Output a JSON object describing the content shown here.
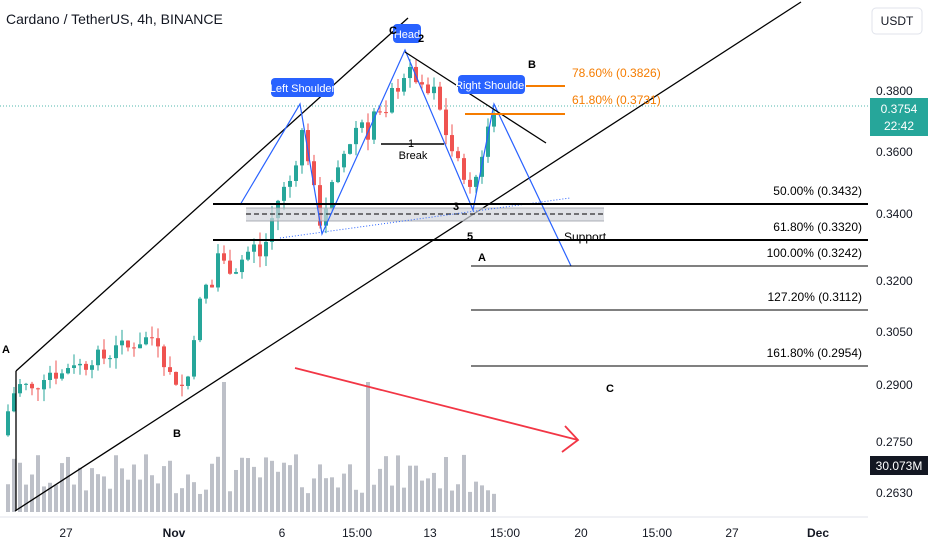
{
  "header": {
    "title": "Cardano / TetherUS, 4h, BINANCE"
  },
  "price_axis": {
    "currency_button": "USDT",
    "ticks": [
      "0.3800",
      "0.3600",
      "0.3400",
      "0.3200",
      "0.3050",
      "0.2900",
      "0.2750",
      "0.2630"
    ],
    "current_price": "0.3754",
    "countdown": "22:42",
    "volume_label": "30.073M"
  },
  "time_axis": {
    "ticks": [
      "27",
      "Nov",
      "6",
      "15:00",
      "13",
      "15:00",
      "20",
      "15:00",
      "27",
      "Dec"
    ]
  },
  "annotations": {
    "left_shoulder": "Left Shoulder",
    "head": "Head",
    "right_shoulder": "Right Shoulder",
    "break_num": "1",
    "break": "Break",
    "support": "Support",
    "wave_A_left": "A",
    "wave_B_low": "B",
    "wave_C_top": "C",
    "wave_2": "2",
    "wave_B_right": "B",
    "wave_3": "3",
    "wave_5": "5",
    "wave_A_right": "A",
    "wave_C_bottom": "C"
  },
  "fib_upper": [
    {
      "label": "78.60% (0.3826)",
      "price": 0.3826
    },
    {
      "label": "61.80% (0.3731)",
      "price": 0.3731
    }
  ],
  "fib_lower": [
    {
      "label": "50.00% (0.3432)",
      "price": 0.3432
    },
    {
      "label": "61.80% (0.3320)",
      "price": 0.332
    },
    {
      "label": "100.00% (0.3242)",
      "price": 0.3242
    },
    {
      "label": "127.20% (0.3112)",
      "price": 0.3112
    },
    {
      "label": "161.80% (0.2954)",
      "price": 0.2954
    }
  ],
  "colors": {
    "up": "#26a69a",
    "down": "#ef5350",
    "fib_upper": "#f57c00",
    "pattern_label_bg": "#2962ff",
    "projection": "#2962ff",
    "arrow": "#f23645",
    "price_badge": "#26a69a",
    "volume": "#b2b5be"
  },
  "chart_data": {
    "type": "candlestick",
    "symbol": "ADAUSDT",
    "timeframe": "4h",
    "exchange": "BINANCE",
    "ylim": [
      0.258,
      0.398
    ],
    "current_price": 0.3754,
    "path_points": [
      [
        0,
        0.269
      ],
      [
        10,
        0.282
      ],
      [
        20,
        0.286
      ],
      [
        32,
        0.283
      ],
      [
        45,
        0.29
      ],
      [
        58,
        0.288
      ],
      [
        70,
        0.293
      ],
      [
        82,
        0.291
      ],
      [
        95,
        0.295
      ],
      [
        106,
        0.2935
      ],
      [
        114,
        0.299
      ],
      [
        125,
        0.297
      ],
      [
        136,
        0.299
      ],
      [
        148,
        0.301
      ],
      [
        157,
        0.299
      ],
      [
        164,
        0.2905
      ],
      [
        170,
        0.288
      ],
      [
        176,
        0.286
      ],
      [
        181,
        0.2845
      ],
      [
        186,
        0.288
      ],
      [
        194,
        0.306
      ],
      [
        202,
        0.318
      ],
      [
        209,
        0.315
      ],
      [
        216,
        0.328
      ],
      [
        223,
        0.324
      ],
      [
        232,
        0.322
      ],
      [
        242,
        0.327
      ],
      [
        252,
        0.33
      ],
      [
        260,
        0.326
      ],
      [
        268,
        0.337
      ],
      [
        278,
        0.347
      ],
      [
        290,
        0.352
      ],
      [
        300,
        0.367
      ],
      [
        308,
        0.356
      ],
      [
        314,
        0.344
      ],
      [
        320,
        0.335
      ],
      [
        326,
        0.347
      ],
      [
        334,
        0.352
      ],
      [
        342,
        0.36
      ],
      [
        350,
        0.365
      ],
      [
        358,
        0.372
      ],
      [
        366,
        0.366
      ],
      [
        374,
        0.376
      ],
      [
        382,
        0.369
      ],
      [
        390,
        0.38
      ],
      [
        398,
        0.382
      ],
      [
        404,
        0.387
      ],
      [
        410,
        0.386
      ],
      [
        416,
        0.383
      ],
      [
        424,
        0.378
      ],
      [
        430,
        0.382
      ],
      [
        436,
        0.377
      ],
      [
        441,
        0.369
      ],
      [
        447,
        0.364
      ],
      [
        452,
        0.359
      ],
      [
        458,
        0.356
      ],
      [
        464,
        0.352
      ],
      [
        470,
        0.346
      ],
      [
        476,
        0.356
      ],
      [
        482,
        0.362
      ],
      [
        487,
        0.37
      ],
      [
        493,
        0.3754
      ]
    ],
    "volume_bar_count": 82,
    "volume_spikes": [
      {
        "date": "Nov 1",
        "bar_index": 36,
        "relative_height": 0.86
      },
      {
        "date": "Nov 9",
        "bar_index": 60,
        "relative_height": 0.86
      }
    ]
  }
}
